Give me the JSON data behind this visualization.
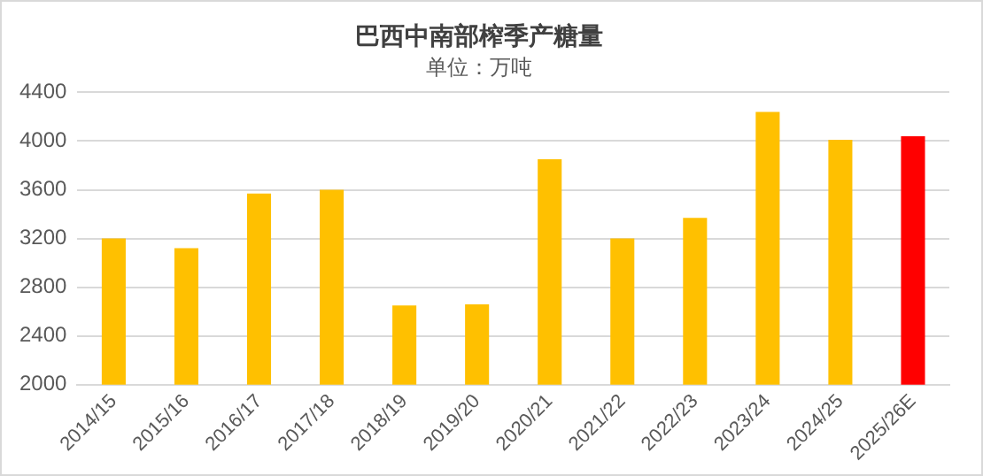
{
  "chart_data": {
    "type": "bar",
    "title": "巴西中南部榨季产糖量",
    "subtitle": "单位：万吨",
    "categories": [
      "2014/15",
      "2015/16",
      "2016/17",
      "2017/18",
      "2018/19",
      "2019/20",
      "2020/21",
      "2021/22",
      "2022/23",
      "2023/24",
      "2024/25",
      "2025/26E"
    ],
    "values": [
      3200,
      3120,
      3570,
      3600,
      2650,
      2660,
      3850,
      3200,
      3370,
      4240,
      4010,
      4040
    ],
    "colors": [
      "#ffc000",
      "#ffc000",
      "#ffc000",
      "#ffc000",
      "#ffc000",
      "#ffc000",
      "#ffc000",
      "#ffc000",
      "#ffc000",
      "#ffc000",
      "#ffc000",
      "#ff0000"
    ],
    "ylim": [
      2000,
      4400
    ],
    "yticks": [
      2000,
      2400,
      2800,
      3200,
      3600,
      4000,
      4400
    ],
    "grid": "y",
    "legend": false
  }
}
